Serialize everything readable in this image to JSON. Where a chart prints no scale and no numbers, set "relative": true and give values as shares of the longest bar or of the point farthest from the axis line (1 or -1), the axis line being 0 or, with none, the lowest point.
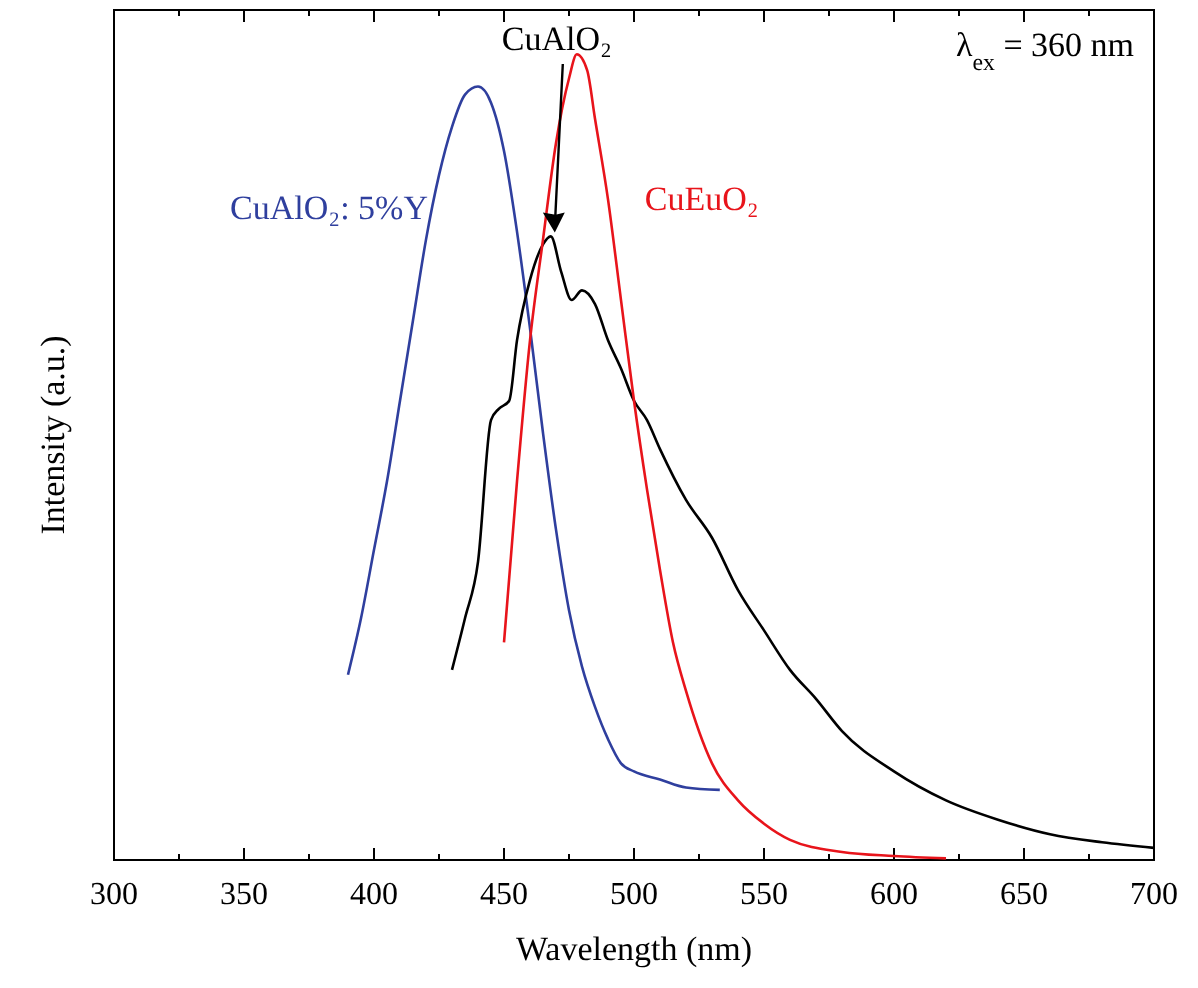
{
  "chart_data": {
    "type": "line",
    "relative": true,
    "xlabel": "Wavelength (nm)",
    "ylabel": "Intensity (a.u.)",
    "xlim": [
      300,
      700
    ],
    "xticks": [
      300,
      350,
      400,
      450,
      500,
      550,
      600,
      650,
      700
    ],
    "annotations": [
      "λ$_{ex}$ = 360 nm"
    ],
    "marker": "none",
    "line_style": "solid",
    "series": [
      {
        "name": "CuAlO₂: 5%Y",
        "color": "#2f3f9e",
        "x": [
          390,
          395,
          400,
          405,
          410,
          415,
          420,
          425,
          430,
          435,
          440,
          445,
          450,
          455,
          460,
          465,
          470,
          475,
          480,
          485,
          490,
          495,
          500,
          510,
          520,
          533
        ],
        "values": [
          0.23,
          0.3,
          0.385,
          0.47,
          0.57,
          0.67,
          0.77,
          0.85,
          0.91,
          0.95,
          0.96,
          0.94,
          0.88,
          0.78,
          0.66,
          0.53,
          0.41,
          0.31,
          0.24,
          0.19,
          0.15,
          0.12,
          0.11,
          0.1,
          0.09,
          0.087
        ]
      },
      {
        "name": "CuAlO₂",
        "color": "#000000",
        "x": [
          430,
          435,
          440,
          445,
          448,
          452,
          455,
          460,
          465,
          468,
          472,
          476,
          480,
          485,
          490,
          495,
          500,
          505,
          510,
          520,
          530,
          540,
          550,
          560,
          570,
          580,
          600,
          620,
          640,
          660,
          680,
          700
        ],
        "values": [
          0.236,
          0.3,
          0.37,
          0.546,
          0.56,
          0.57,
          0.645,
          0.72,
          0.764,
          0.774,
          0.73,
          0.695,
          0.707,
          0.69,
          0.645,
          0.61,
          0.57,
          0.546,
          0.51,
          0.447,
          0.4,
          0.335,
          0.285,
          0.236,
          0.2,
          0.16,
          0.11,
          0.074,
          0.05,
          0.032,
          0.022,
          0.015
        ]
      },
      {
        "name": "CuEuO₂",
        "color": "#e8141b",
        "x": [
          450,
          455,
          460,
          465,
          470,
          475,
          478,
          482,
          485,
          490,
          495,
          500,
          505,
          510,
          515,
          520,
          530,
          540,
          550,
          560,
          580,
          600,
          620
        ],
        "values": [
          0.27,
          0.47,
          0.645,
          0.77,
          0.89,
          0.97,
          1.0,
          0.98,
          0.92,
          0.82,
          0.695,
          0.57,
          0.46,
          0.36,
          0.27,
          0.21,
          0.12,
          0.074,
          0.045,
          0.025,
          0.01,
          0.005,
          0.002
        ]
      }
    ]
  }
}
